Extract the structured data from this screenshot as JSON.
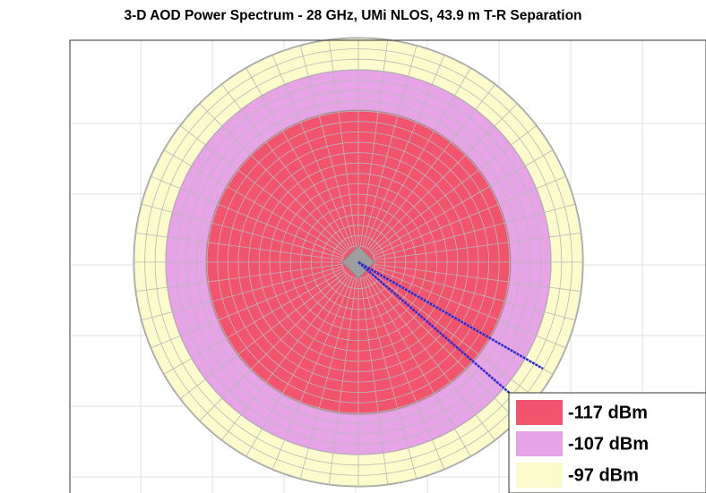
{
  "chart_data": {
    "type": "spectrum",
    "title": "3-D AOD Power Spectrum - 28 GHz, UMi NLOS, 43.9 m T-R Separation",
    "series": [
      {
        "name": "-117 dBm",
        "color": "#f2536d"
      },
      {
        "name": "-107 dBm",
        "color": "#e6a3e6"
      },
      {
        "name": "-97 dBm",
        "color": "#fbfbcc"
      }
    ]
  }
}
